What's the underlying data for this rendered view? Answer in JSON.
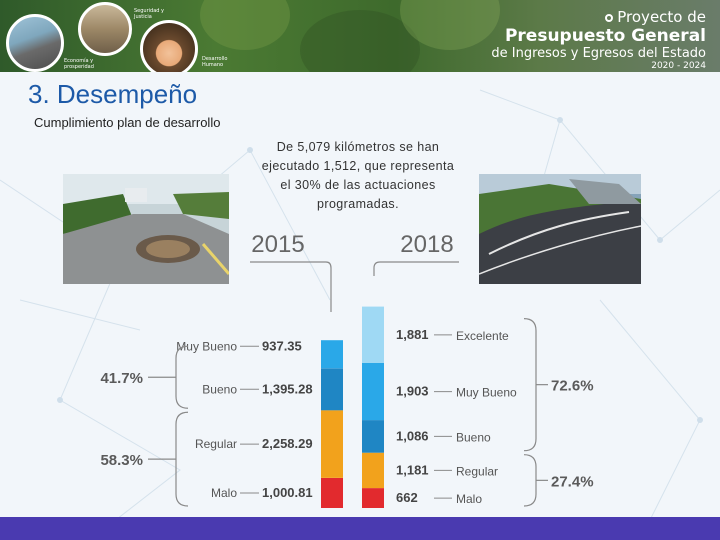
{
  "header": {
    "captions": [
      "Seguridad y Justicia",
      "Economía y prosperidad",
      "Desarrollo Humano"
    ],
    "brand_line1": "Proyecto de",
    "brand_line2": "Presupuesto General",
    "brand_line3": "de Ingresos y Egresos del Estado",
    "brand_line4": "2020 - 2024"
  },
  "page": {
    "title": "3. Desempeño",
    "subtitle": "Cumplimiento plan de desarrollo",
    "info": "De 5,079 kilómetros se han ejecutado 1,512, que representa el 30% de las actuaciones programadas."
  },
  "colors": {
    "title": "#1d5aa8",
    "excelente": "#9fd9f4",
    "muy_bueno": "#2aa8e8",
    "bueno": "#1f86c4",
    "regular": "#f2a21c",
    "malo": "#e22a2e",
    "footer": "#4a3ab0"
  },
  "chart_data": {
    "type": "bar",
    "subtype": "stacked",
    "categories": [
      "2015",
      "2018"
    ],
    "series": [
      {
        "name": "Excelente",
        "values": [
          0,
          1881
        ]
      },
      {
        "name": "Muy Bueno",
        "values": [
          937.35,
          1903
        ]
      },
      {
        "name": "Bueno",
        "values": [
          1395.28,
          1086
        ]
      },
      {
        "name": "Regular",
        "values": [
          2258.29,
          1181
        ]
      },
      {
        "name": "Malo",
        "values": [
          1000.81,
          662
        ]
      }
    ],
    "labels_2015": [
      "Muy Bueno",
      "Bueno",
      "Regular",
      "Malo"
    ],
    "values_2015_text": [
      "937.35",
      "1,395.28",
      "2,258.29",
      "1,000.81"
    ],
    "labels_2018": [
      "Excelente",
      "Muy Bueno",
      "Bueno",
      "Regular",
      "Malo"
    ],
    "values_2018_text": [
      "1,881",
      "1,903",
      "1,086",
      "1,181",
      "662"
    ],
    "group_percent_2015": [
      "41.7%",
      "58.3%"
    ],
    "group_percent_2018": [
      "72.6%",
      "27.4%"
    ]
  }
}
